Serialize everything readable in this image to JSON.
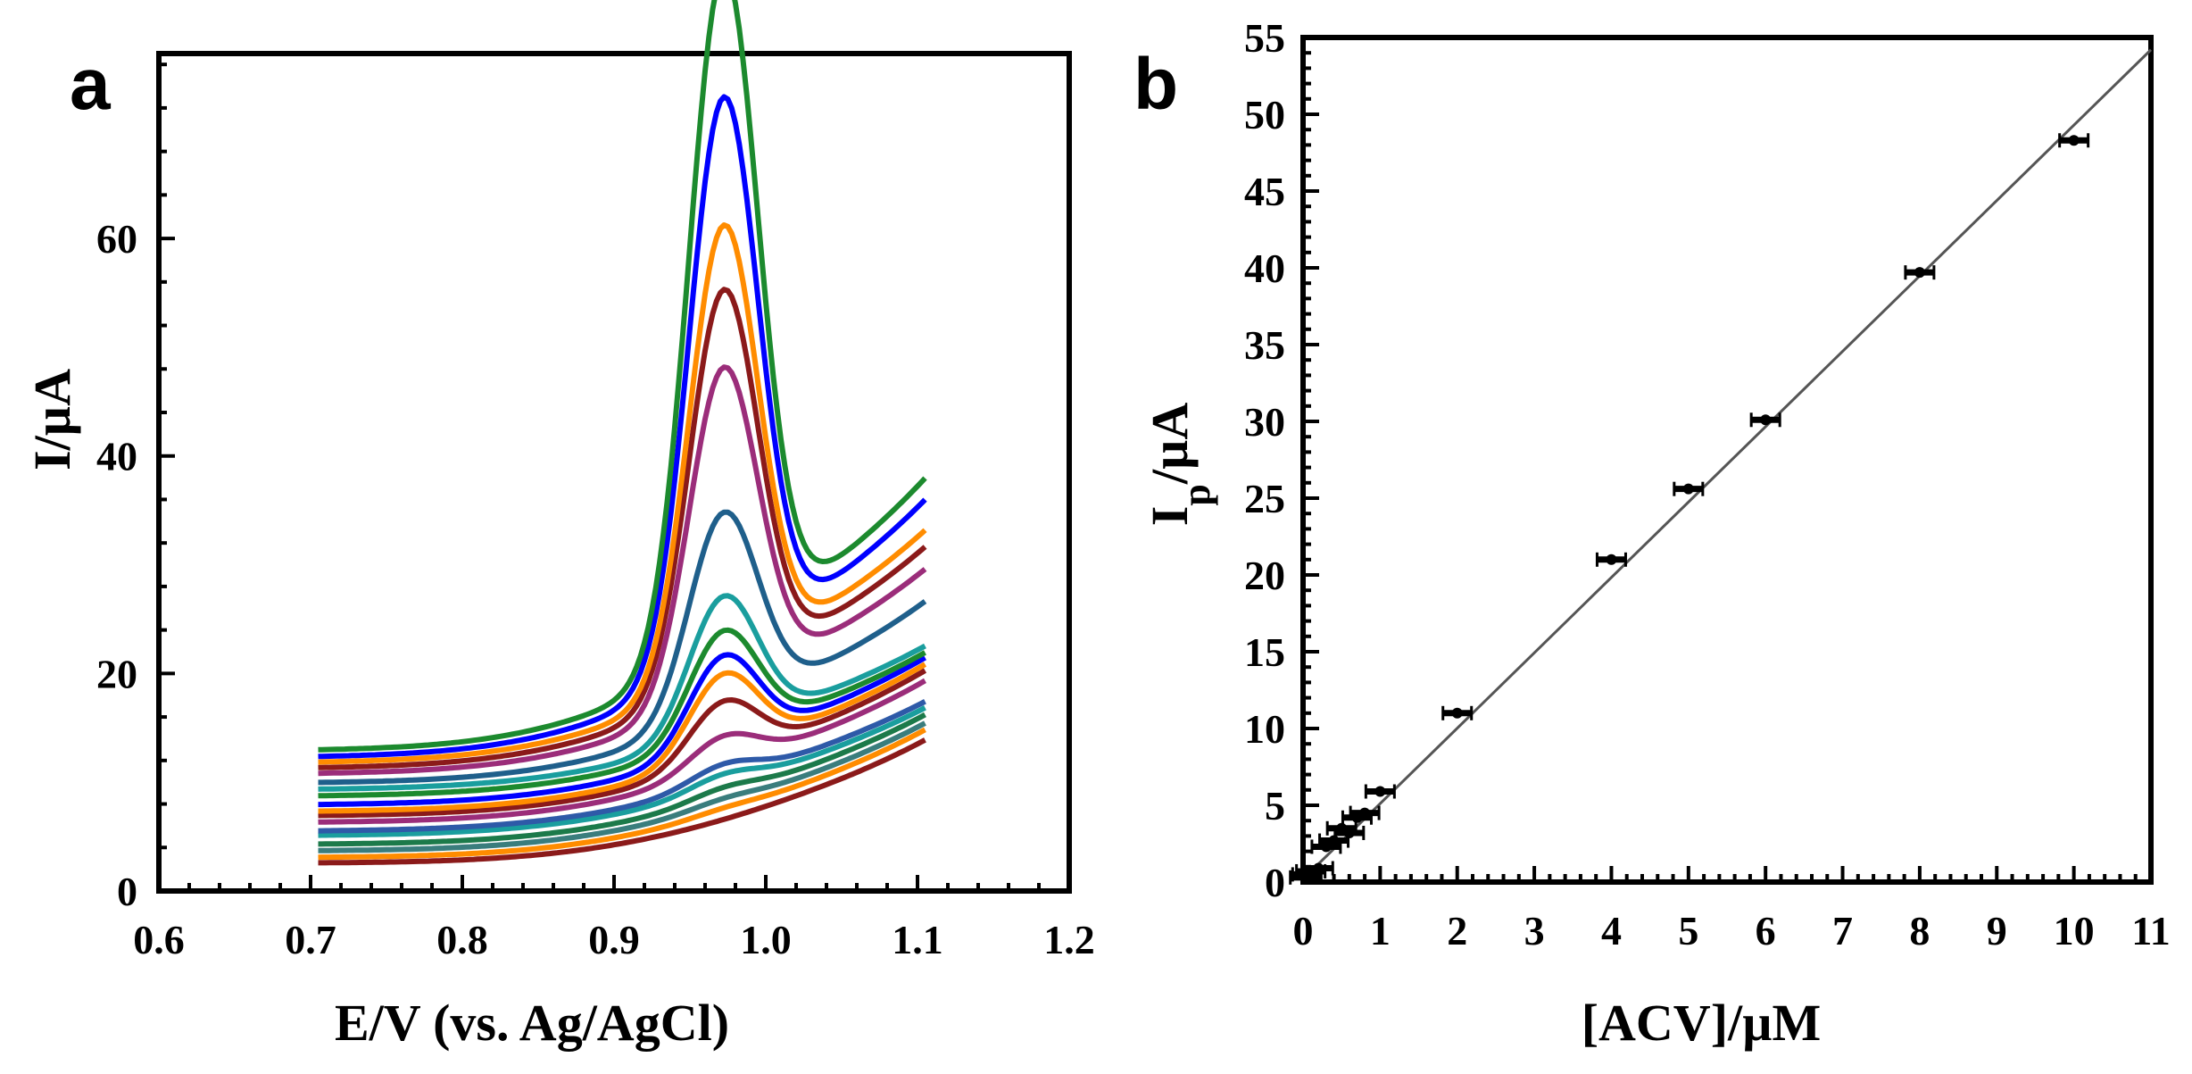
{
  "chart_data": [
    {
      "panel": "a",
      "type": "line",
      "xlabel": "E/V (vs. Ag/AgCl)",
      "ylabel": "I/µA",
      "xlim": [
        0.6,
        1.2
      ],
      "ylim": [
        0,
        77
      ],
      "x_ticks": [
        0.6,
        0.7,
        0.8,
        0.9,
        1.0,
        1.1,
        1.2
      ],
      "x_tick_labels": [
        "0.6",
        "0.7",
        "0.8",
        "0.9",
        "1.0",
        "1.1",
        "1.2"
      ],
      "y_ticks": [
        0,
        20,
        40,
        60
      ],
      "y_tick_labels": [
        "0",
        "20",
        "40",
        "60"
      ],
      "grid": false,
      "legend": "none",
      "series": [
        {
          "color": "#8b1a1a",
          "base": 2.5,
          "slope": 1.3,
          "peak": 0.0,
          "tail": 14.5
        },
        {
          "color": "#ff8c00",
          "base": 3.0,
          "slope": 1.5,
          "peak": 0.3,
          "tail": 15.3
        },
        {
          "color": "#3a7d7d",
          "base": 3.6,
          "slope": 1.6,
          "peak": 0.5,
          "tail": 15.8
        },
        {
          "color": "#1c7a4a",
          "base": 4.2,
          "slope": 1.7,
          "peak": 0.8,
          "tail": 16.5
        },
        {
          "color": "#1a9e9e",
          "base": 5.0,
          "slope": 1.8,
          "peak": 1.2,
          "tail": 17.0
        },
        {
          "color": "#2e5aa8",
          "base": 5.4,
          "slope": 1.9,
          "peak": 1.6,
          "tail": 17.5
        },
        {
          "color": "#9b2d7a",
          "base": 6.2,
          "slope": 2.0,
          "peak": 3.0,
          "tail": 19.5
        },
        {
          "color": "#8b1a1a",
          "base": 6.8,
          "slope": 2.0,
          "peak": 5.5,
          "tail": 20.5
        },
        {
          "color": "#ff8c00",
          "base": 7.2,
          "slope": 2.1,
          "peak": 7.5,
          "tail": 21.0
        },
        {
          "color": "#0000ff",
          "base": 7.8,
          "slope": 2.2,
          "peak": 8.5,
          "tail": 21.5
        },
        {
          "color": "#1c8a2e",
          "base": 8.6,
          "slope": 2.3,
          "peak": 10.0,
          "tail": 21.8
        },
        {
          "color": "#1a9e9e",
          "base": 9.2,
          "slope": 2.4,
          "peak": 12.5,
          "tail": 22.3
        },
        {
          "color": "#1f5f8b",
          "base": 9.8,
          "slope": 2.6,
          "peak": 18.5,
          "tail": 26.8
        },
        {
          "color": "#9b2d7a",
          "base": 10.6,
          "slope": 3.2,
          "peak": 30.0,
          "tail": 29.5
        },
        {
          "color": "#8b1a1a",
          "base": 11.1,
          "slope": 3.5,
          "peak": 36.0,
          "tail": 31.5
        },
        {
          "color": "#ff8c00",
          "base": 11.6,
          "slope": 3.7,
          "peak": 41.0,
          "tail": 33.0
        },
        {
          "color": "#0000ff",
          "base": 12.1,
          "slope": 3.9,
          "peak": 51.5,
          "tail": 36.0
        },
        {
          "color": "#1c8a2e",
          "base": 12.7,
          "slope": 4.1,
          "peak": 62.0,
          "tail": 38.0
        }
      ]
    },
    {
      "panel": "b",
      "type": "scatter",
      "xlabel": "[ACV]/µM",
      "ylabel_main": "I",
      "ylabel_sub": "p",
      "ylabel_rest": "/µA",
      "xlim": [
        0,
        11
      ],
      "ylim": [
        0,
        55
      ],
      "x_ticks": [
        0,
        1,
        2,
        3,
        4,
        5,
        6,
        7,
        8,
        9,
        10,
        11
      ],
      "x_tick_labels": [
        "0",
        "1",
        "2",
        "3",
        "4",
        "5",
        "6",
        "7",
        "8",
        "9",
        "10",
        "11"
      ],
      "y_ticks": [
        0,
        5,
        10,
        15,
        20,
        25,
        30,
        35,
        40,
        45,
        50,
        55
      ],
      "y_tick_labels": [
        "0",
        "5",
        "10",
        "15",
        "20",
        "25",
        "30",
        "35",
        "40",
        "45",
        "50",
        "55"
      ],
      "grid": false,
      "legend": "none",
      "points": {
        "x": [
          0.02,
          0.05,
          0.1,
          0.2,
          0.3,
          0.4,
          0.5,
          0.6,
          0.7,
          0.8,
          1.0,
          2.0,
          4.0,
          5.0,
          6.0,
          8.0,
          10.0
        ],
        "y": [
          0.3,
          0.5,
          0.7,
          0.9,
          2.3,
          2.7,
          3.5,
          3.2,
          4.2,
          4.5,
          5.9,
          11.0,
          21.0,
          25.6,
          30.1,
          39.7,
          48.3
        ],
        "error": [
          0.3,
          0.3,
          0.3,
          0.3,
          0.3,
          0.3,
          0.3,
          0.3,
          0.3,
          0.3,
          0.3,
          0.3,
          0.3,
          0.3,
          0.3,
          0.3,
          0.3
        ]
      },
      "fit_line": {
        "x": [
          0,
          11
        ],
        "y": [
          0.2,
          54.2
        ]
      }
    }
  ],
  "panel_labels": {
    "a": "a",
    "b": "b"
  }
}
